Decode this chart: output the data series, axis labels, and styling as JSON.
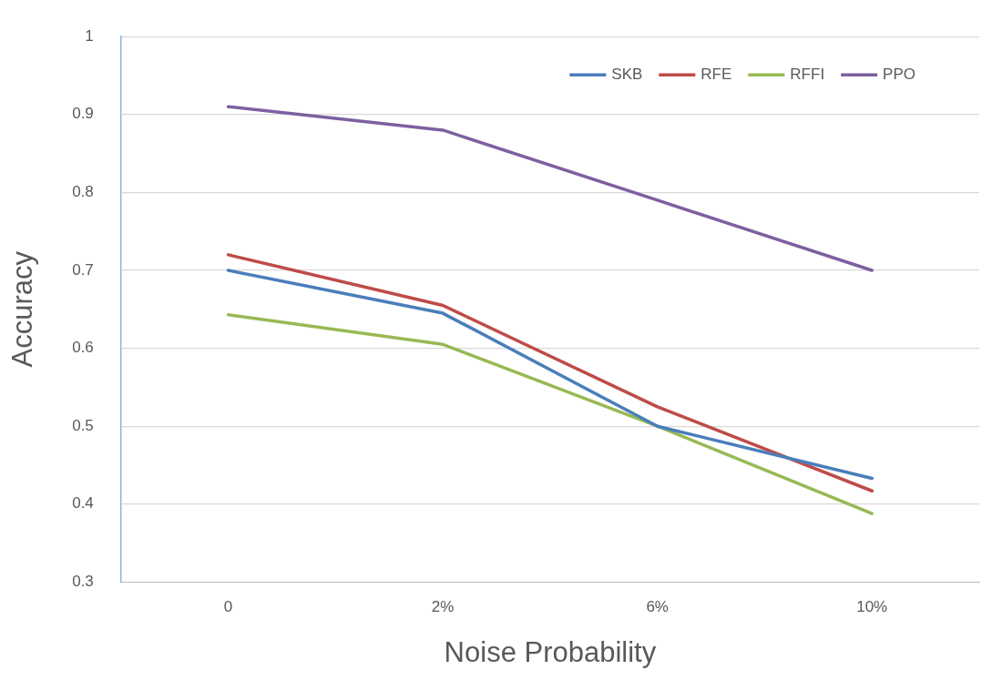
{
  "chart_data": {
    "type": "line",
    "xlabel": "Noise Probability",
    "ylabel": "Accuracy",
    "categories": [
      "0",
      "2%",
      "6%",
      "10%"
    ],
    "series": [
      {
        "name": "SKB",
        "color": "#4a7ebb",
        "values": [
          0.7,
          0.645,
          0.5,
          0.433
        ]
      },
      {
        "name": "RFE",
        "color": "#be4b48",
        "values": [
          0.72,
          0.655,
          0.525,
          0.417
        ]
      },
      {
        "name": "RFFI",
        "color": "#98b954",
        "values": [
          0.643,
          0.605,
          0.5,
          0.388
        ]
      },
      {
        "name": "PPO",
        "color": "#7d60a0",
        "values": [
          0.91,
          0.88,
          0.79,
          0.7
        ]
      }
    ],
    "ylim": [
      0.3,
      1
    ],
    "yticks": [
      0.3,
      0.4,
      0.5,
      0.6,
      0.7,
      0.8,
      0.9,
      1
    ],
    "grid": "y",
    "legend": "top right",
    "marker": "none",
    "line_style": "solid"
  }
}
